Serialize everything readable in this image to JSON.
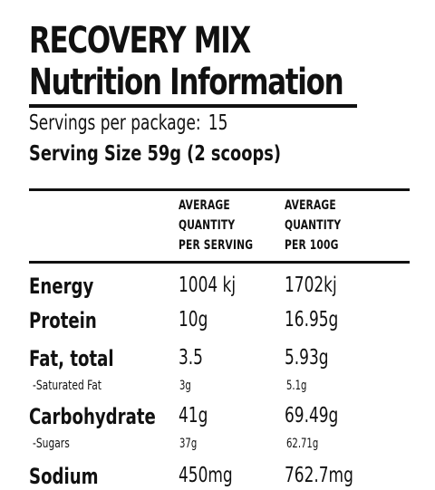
{
  "product_name": "RECOVERY MIX",
  "panel_title": "Nutrition Information",
  "servings": {
    "label": "Servings per package:",
    "value": "15"
  },
  "serving_size": "Serving Size 59g (2 scoops)",
  "columns": {
    "per_serving": [
      "AVERAGE",
      "QUANTITY",
      "PER SERVING"
    ],
    "per_100g": [
      "AVERAGE",
      "QUANTITY",
      "PER 100G"
    ]
  },
  "rows": [
    {
      "label": "Energy",
      "per_serving": "1004 kj",
      "per_100g": "1702kj"
    },
    {
      "label": "Protein",
      "per_serving": "10g",
      "per_100g": "16.95g"
    },
    {
      "label": "Fat, total",
      "per_serving": "3.5",
      "per_100g": "5.93g"
    },
    {
      "label": "-Saturated Fat",
      "per_serving": "3g",
      "per_100g": "5.1g"
    },
    {
      "label": "Carbohydrate",
      "per_serving": "41g",
      "per_100g": "69.49g"
    },
    {
      "label": "-Sugars",
      "per_serving": "37g",
      "per_100g": "62.71g"
    },
    {
      "label": "Sodium",
      "per_serving": "450mg",
      "per_100g": "762.7mg"
    }
  ]
}
